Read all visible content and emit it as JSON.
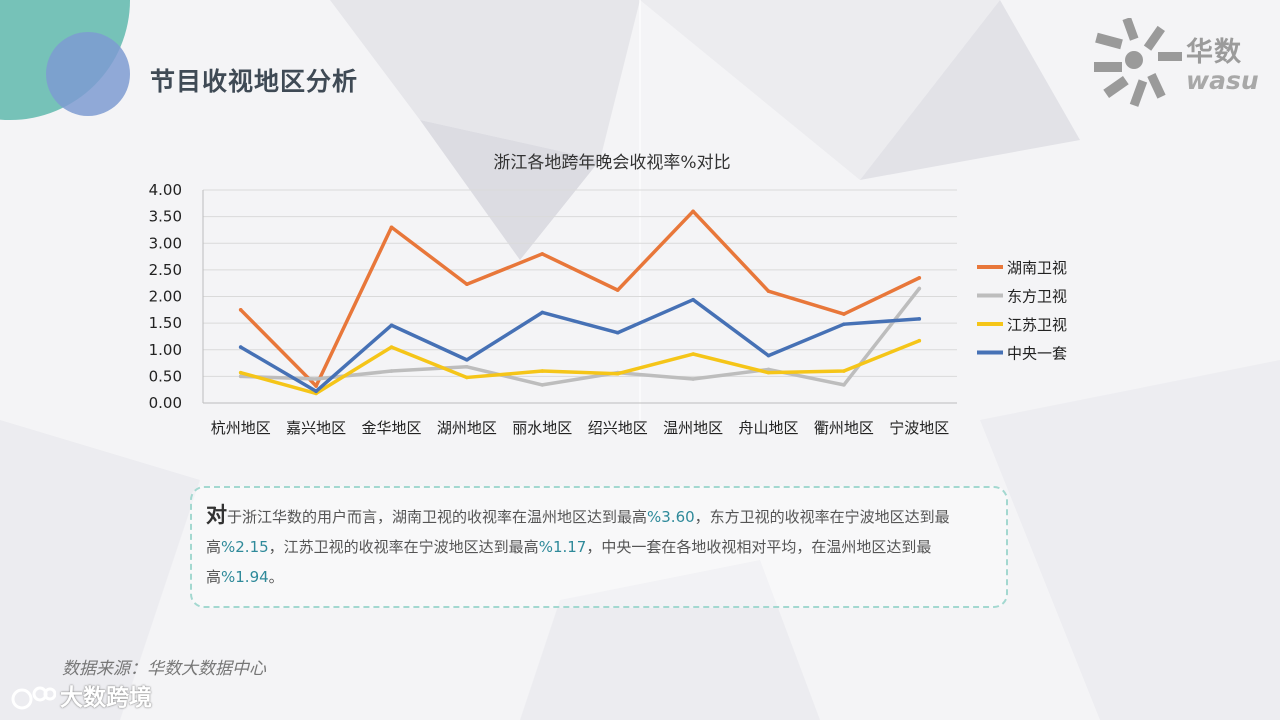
{
  "header": {
    "title": "节目收视地区分析",
    "logo_cn": "华数",
    "logo_en": "wasu"
  },
  "chart_data": {
    "type": "line",
    "title": "浙江各地跨年晚会收视率%对比",
    "categories": [
      "杭州地区",
      "嘉兴地区",
      "金华地区",
      "湖州地区",
      "丽水地区",
      "绍兴地区",
      "温州地区",
      "舟山地区",
      "衢州地区",
      "宁波地区"
    ],
    "ylim": [
      0,
      4
    ],
    "yticks": [
      "0.00",
      "0.50",
      "1.00",
      "1.50",
      "2.00",
      "2.50",
      "3.00",
      "3.50",
      "4.00"
    ],
    "grid": true,
    "legend_position": "right",
    "series": [
      {
        "name": "湖南卫视",
        "color": "#e8773a",
        "values": [
          1.75,
          0.32,
          3.3,
          2.23,
          2.8,
          2.12,
          3.6,
          2.1,
          1.67,
          2.35
        ]
      },
      {
        "name": "东方卫视",
        "color": "#bdbdbd",
        "values": [
          0.5,
          0.45,
          0.6,
          0.68,
          0.34,
          0.57,
          0.45,
          0.63,
          0.34,
          2.15
        ]
      },
      {
        "name": "江苏卫视",
        "color": "#f5c518",
        "values": [
          0.57,
          0.18,
          1.05,
          0.48,
          0.6,
          0.55,
          0.92,
          0.57,
          0.6,
          1.17
        ]
      },
      {
        "name": "中央一套",
        "color": "#4671b5",
        "values": [
          1.05,
          0.22,
          1.46,
          0.81,
          1.7,
          1.32,
          1.94,
          0.89,
          1.48,
          1.58
        ]
      }
    ]
  },
  "summary": {
    "lead": "对",
    "t1": "于浙江华数的用户而言，湖南卫视的收视率在温州地区达到最高",
    "v1": "%3.60",
    "t2": "，东方卫视的收视率在宁波地区达到最高",
    "v2": "%2.15",
    "t3": "，江苏卫视的收视率在宁波地区达到最高",
    "v3": "%1.17",
    "t4": "，中央一套在各地收视相对平均，在温州地区达到最高",
    "v4": "%1.94",
    "t5": "。"
  },
  "footer": {
    "source": "数据来源：华数大数据中心",
    "watermark": "大数跨境"
  },
  "colors": {
    "title": "#3f4a55",
    "accent_teal": "#5fb8ad",
    "accent_blue": "#7e9bd1",
    "border": "#a3d8d0"
  }
}
